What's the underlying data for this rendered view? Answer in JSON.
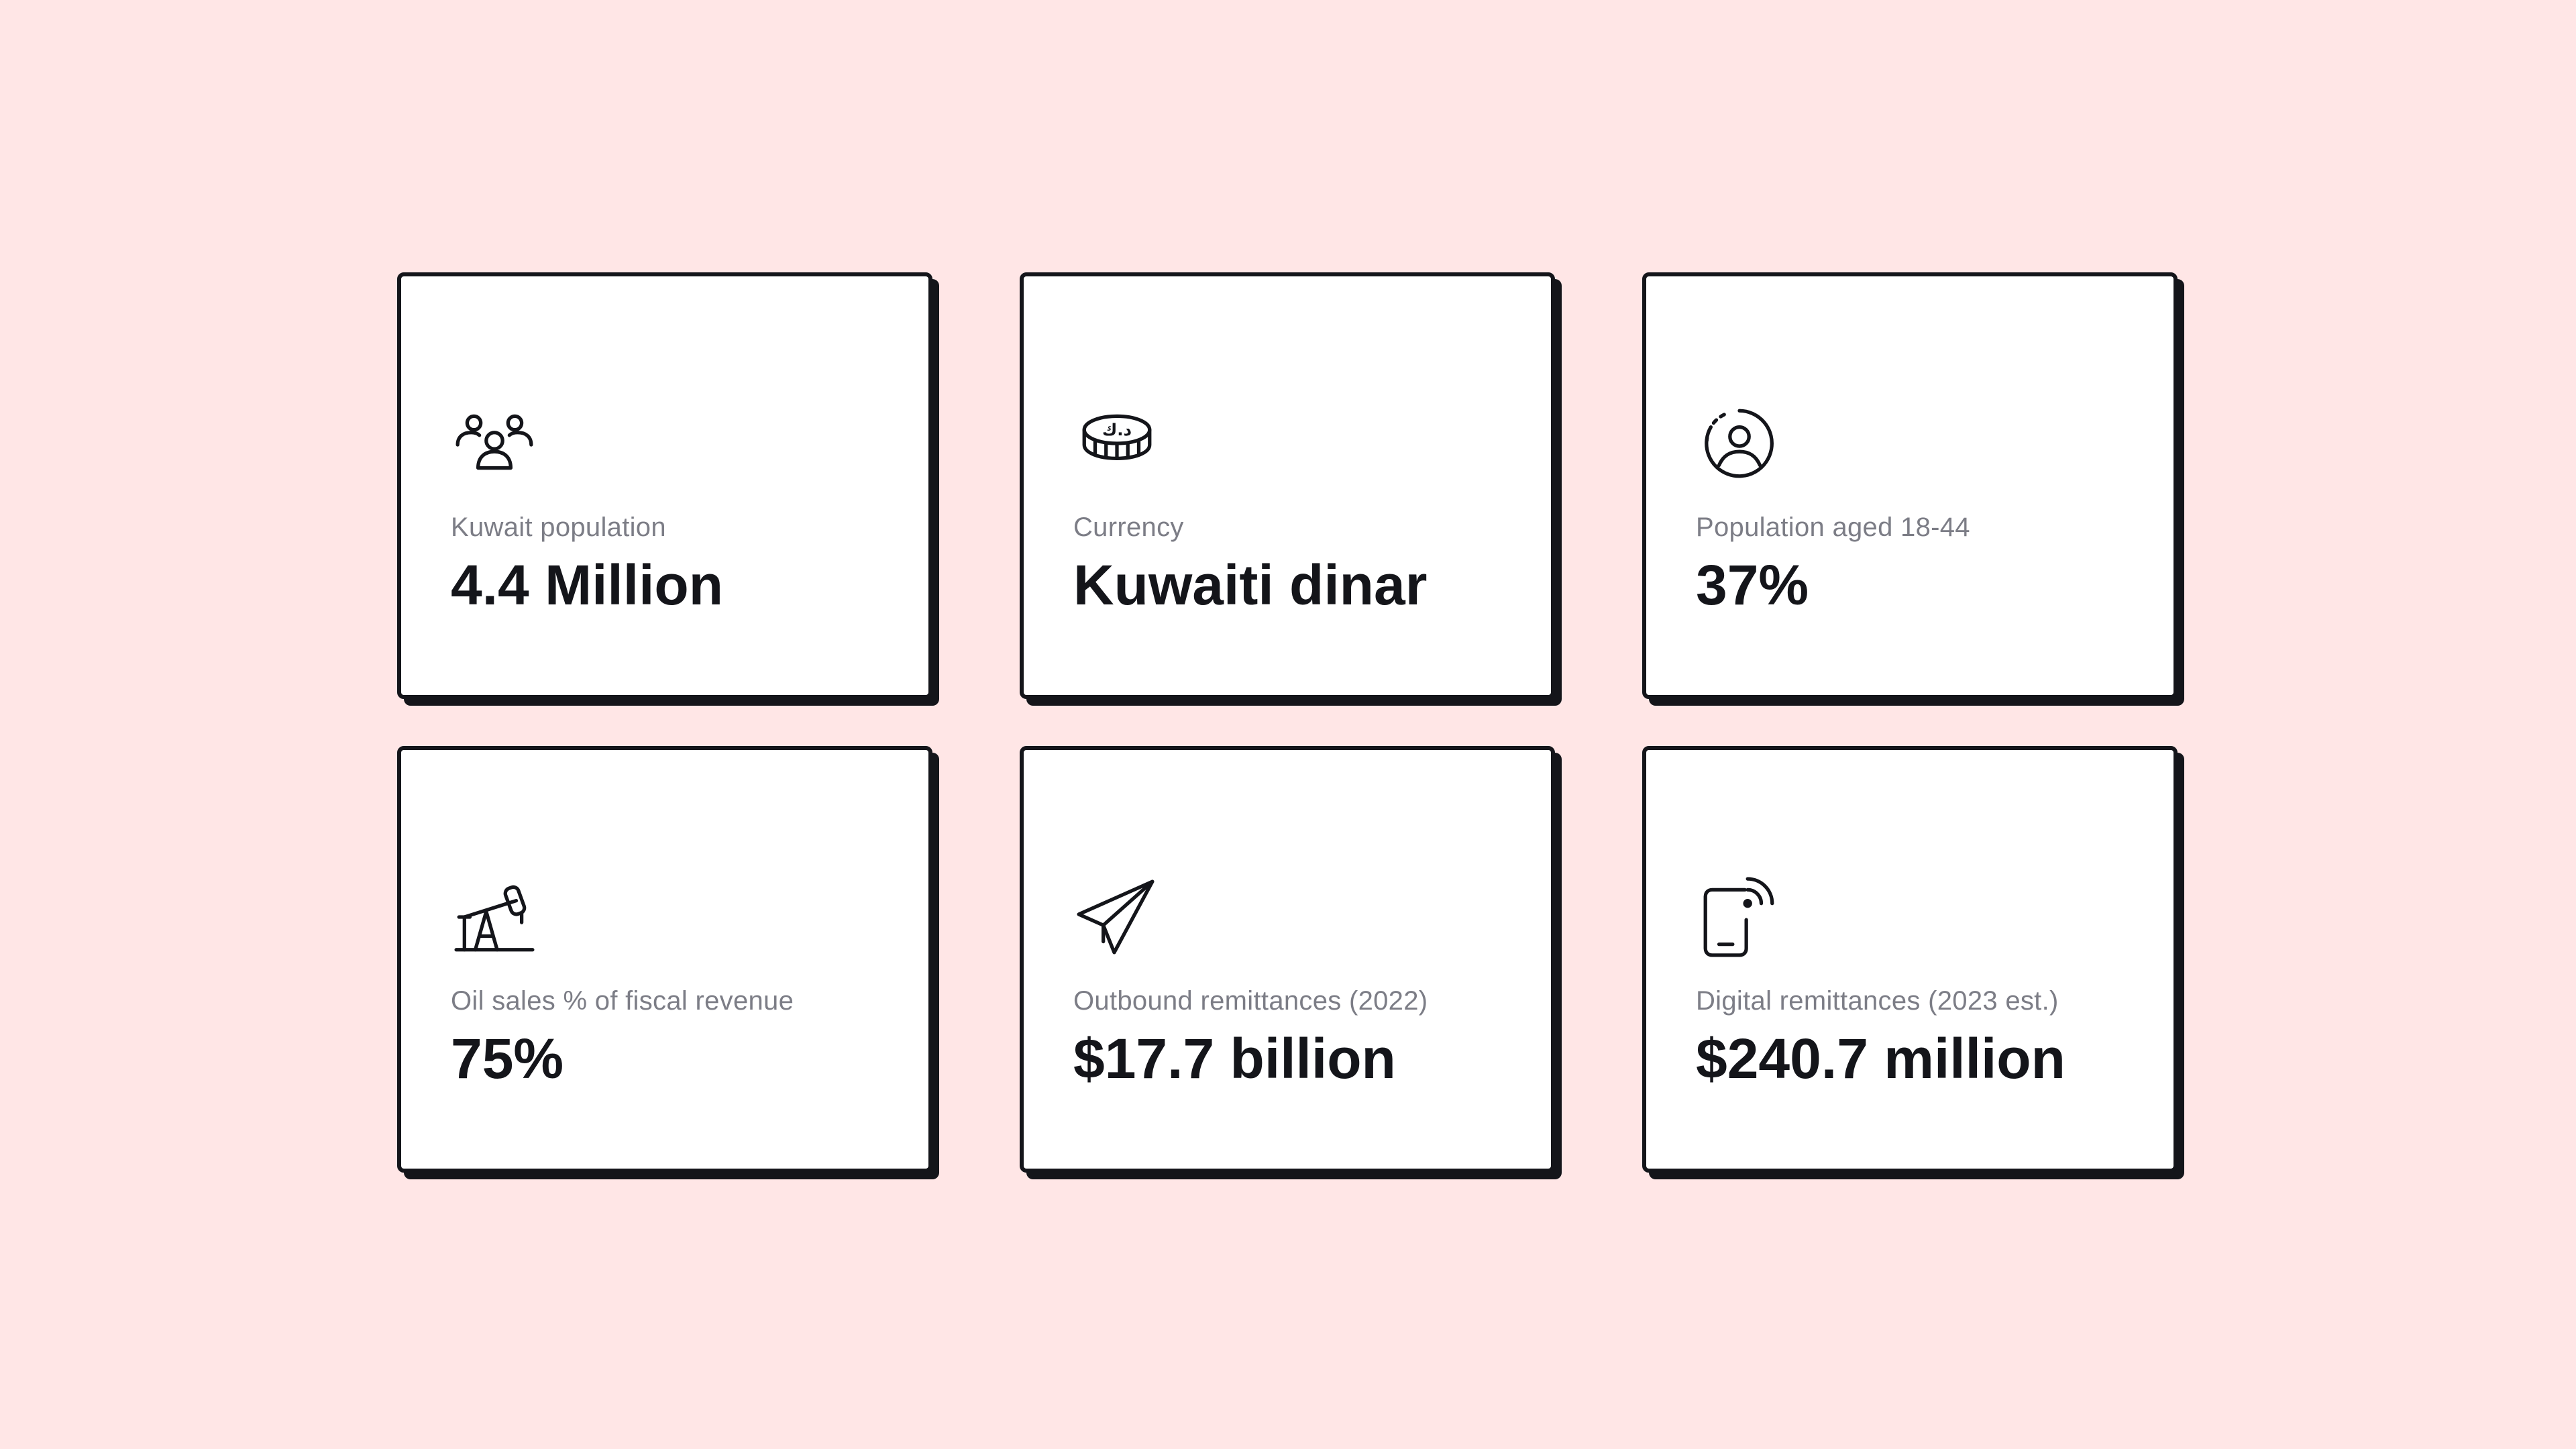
{
  "cards": [
    {
      "icon": "people-group-icon",
      "label": "Kuwait population",
      "value": "4.4 Million"
    },
    {
      "icon": "dinar-coin-icon",
      "label": "Currency",
      "value": "Kuwaiti dinar",
      "icon_glyph": "د.ك"
    },
    {
      "icon": "user-circle-dashed-icon",
      "label": "Population aged 18-44",
      "value": "37%"
    },
    {
      "icon": "oil-pumpjack-icon",
      "label": "Oil sales % of fiscal revenue",
      "value": "75%"
    },
    {
      "icon": "paper-plane-icon",
      "label": "Outbound remittances (2022)",
      "value": "$17.7 billion"
    },
    {
      "icon": "mobile-signal-icon",
      "label": "Digital remittances (2023 est.)",
      "value": "$240.7 million"
    }
  ],
  "colors": {
    "background": "#ffe6e6",
    "card": "#ffffff",
    "border": "#14151a",
    "label": "#7c7d86",
    "value": "#14151a"
  }
}
